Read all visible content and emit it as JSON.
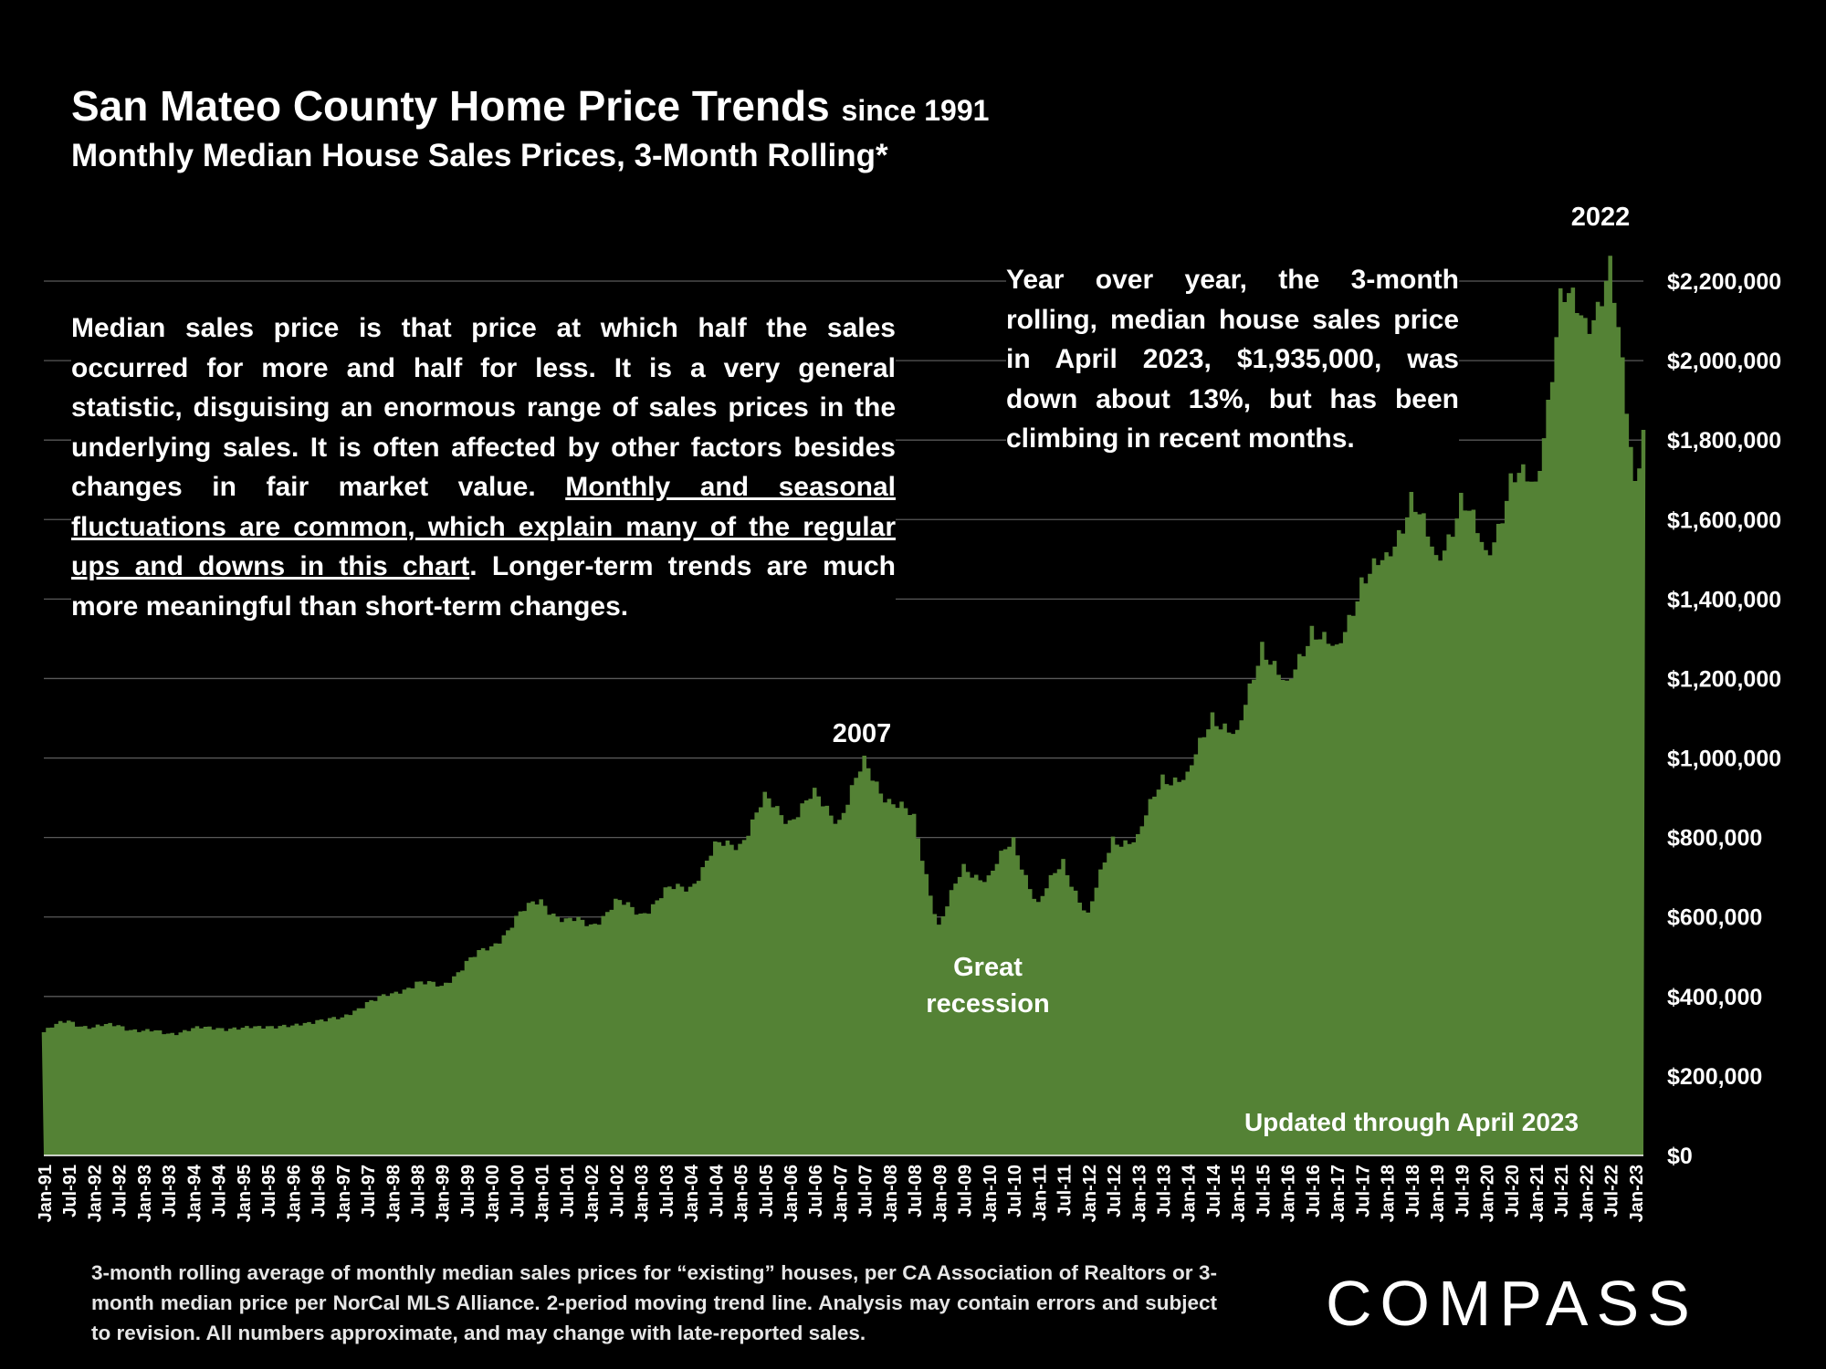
{
  "title": "San Mateo County Home Price Trends",
  "title_suffix": "since 1991",
  "subtitle": "Monthly Median House Sales Prices, 3-Month Rolling*",
  "left_note": {
    "part1": "Median sales price is that price at which half the sales occurred for more and half for less. It is a very general statistic, disguising an enormous range of sales prices in the underlying sales. It is often affected by other factors besides changes in fair market value. ",
    "underlined": "Monthly and seasonal fluctuations are common, which explain many of the regular ups and downs in this chart",
    "part2": ". Longer-term trends are much more meaningful than short-term changes."
  },
  "right_note": "Year over year, the 3-month rolling, median house sales price in April 2023, $1,935,000, was down about 13%, but has been climbing in recent months.",
  "footnote": "3-month rolling average of monthly median sales prices for “existing” houses, per CA Association of Realtors or 3-month median price per NorCal MLS Alliance. 2-period moving trend line. Analysis may contain errors and subject to revision. All numbers approximate, and may change with late-reported sales.",
  "logo": "COMPASS",
  "colors": {
    "background": "#000000",
    "area": "#548235",
    "text": "#ffffff",
    "grid": "#595959"
  },
  "chart_data": {
    "type": "area",
    "title": "San Mateo County Home Price Trends since 1991",
    "subtitle": "Monthly Median House Sales Prices, 3-Month Rolling*",
    "x_start": "Jan-91",
    "x_end": "Apr-23",
    "x_tick_labels": [
      "Jan-91",
      "Jul-91",
      "Jan-92",
      "Jul-92",
      "Jan-93",
      "Jul-93",
      "Jan-94",
      "Jul-94",
      "Jan-95",
      "Jul-95",
      "Jan-96",
      "Jul-96",
      "Jan-97",
      "Jul-97",
      "Jan-98",
      "Jul-98",
      "Jan-99",
      "Jul-99",
      "Jan-00",
      "Jul-00",
      "Jan-01",
      "Jul-01",
      "Jan-02",
      "Jul-02",
      "Jan-03",
      "Jul-03",
      "Jan-04",
      "Jul-04",
      "Jan-05",
      "Jul-05",
      "Jan-06",
      "Jul-06",
      "Jan-07",
      "Jul-07",
      "Jan-08",
      "Jul-08",
      "Jan-09",
      "Jul-09",
      "Jan-10",
      "Jul-10",
      "Jan-11",
      "Jul-11",
      "Jan-12",
      "Jul-12",
      "Jan-13",
      "Jul-13",
      "Jan-14",
      "Jul-14",
      "Jan-15",
      "Jul-15",
      "Jan-16",
      "Jul-16",
      "Jan-17",
      "Jul-17",
      "Jan-18",
      "Jul-18",
      "Jan-19",
      "Jul-19",
      "Jan-20",
      "Jul-20",
      "Jan-21",
      "Jul-21",
      "Jan-22",
      "Jul-22",
      "Jan-23"
    ],
    "y_tick_labels": [
      "$0",
      "$200,000",
      "$400,000",
      "$600,000",
      "$800,000",
      "$1,000,000",
      "$1,200,000",
      "$1,400,000",
      "$1,600,000",
      "$1,800,000",
      "$2,000,000",
      "$2,200,000"
    ],
    "ylim": [
      0,
      2200000
    ],
    "y_axis_position": "right",
    "grid": true,
    "semiannual_values": [
      [
        "Jan-91",
        310000
      ],
      [
        "Jul-91",
        340000
      ],
      [
        "Jan-92",
        320000
      ],
      [
        "Jul-92",
        330000
      ],
      [
        "Jan-93",
        310000
      ],
      [
        "Jul-93",
        310000
      ],
      [
        "Jan-94",
        315000
      ],
      [
        "Jul-94",
        325000
      ],
      [
        "Jan-95",
        315000
      ],
      [
        "Jul-95",
        330000
      ],
      [
        "Jan-96",
        320000
      ],
      [
        "Jul-96",
        345000
      ],
      [
        "Jan-97",
        340000
      ],
      [
        "Jul-97",
        390000
      ],
      [
        "Jan-98",
        400000
      ],
      [
        "Jul-98",
        440000
      ],
      [
        "Jan-99",
        420000
      ],
      [
        "Jul-99",
        490000
      ],
      [
        "Jan-00",
        520000
      ],
      [
        "Jul-00",
        600000
      ],
      [
        "Jan-01",
        640000
      ],
      [
        "Jul-01",
        590000
      ],
      [
        "Jan-02",
        580000
      ],
      [
        "Jul-02",
        635000
      ],
      [
        "Jan-03",
        610000
      ],
      [
        "Jul-03",
        660000
      ],
      [
        "Jan-04",
        680000
      ],
      [
        "Jul-04",
        770000
      ],
      [
        "Jan-05",
        790000
      ],
      [
        "Jul-05",
        890000
      ],
      [
        "Jan-06",
        850000
      ],
      [
        "Jul-06",
        900000
      ],
      [
        "Jan-07",
        850000
      ],
      [
        "Jul-07",
        980000
      ],
      [
        "Jan-08",
        900000
      ],
      [
        "Jul-08",
        840000
      ],
      [
        "Jan-09",
        580000
      ],
      [
        "Jul-09",
        720000
      ],
      [
        "Jan-10",
        700000
      ],
      [
        "Jul-10",
        790000
      ],
      [
        "Jan-11",
        630000
      ],
      [
        "Jul-11",
        740000
      ],
      [
        "Jan-12",
        600000
      ],
      [
        "Jul-12",
        800000
      ],
      [
        "Jan-13",
        790000
      ],
      [
        "Jul-13",
        960000
      ],
      [
        "Jan-14",
        940000
      ],
      [
        "Jul-14",
        1120000
      ],
      [
        "Jan-15",
        1040000
      ],
      [
        "Jul-15",
        1300000
      ],
      [
        "Jan-16",
        1160000
      ],
      [
        "Jul-16",
        1340000
      ],
      [
        "Jan-17",
        1250000
      ],
      [
        "Jul-17",
        1460000
      ],
      [
        "Jan-18",
        1480000
      ],
      [
        "Jul-18",
        1670000
      ],
      [
        "Jan-19",
        1480000
      ],
      [
        "Jul-19",
        1660000
      ],
      [
        "Jan-20",
        1500000
      ],
      [
        "Jul-20",
        1700000
      ],
      [
        "Jan-21",
        1680000
      ],
      [
        "Jul-21",
        2150000
      ],
      [
        "Jan-22",
        2100000
      ],
      [
        "Jul-22",
        2220000
      ],
      [
        "Jan-23",
        1700000
      ],
      [
        "Apr-23",
        1935000
      ]
    ],
    "annotations": [
      "2007",
      "Great",
      "recession",
      "2022",
      "Updated through April 2023"
    ]
  }
}
